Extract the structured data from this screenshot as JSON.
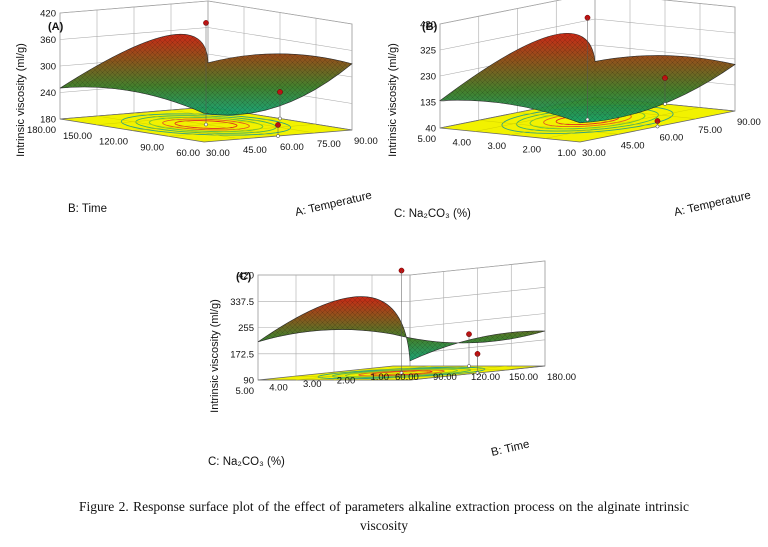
{
  "chart_data": [
    {
      "type": "surface",
      "panel": "(A)",
      "zlabel": "Intrinsic viscosity (ml/g)",
      "xlabel": "A: Temperature",
      "ylabel": "B: Time",
      "zticks": [
        "180",
        "240",
        "300",
        "360",
        "420"
      ],
      "xticks": [
        "30.00",
        "45.00",
        "60.00",
        "75.00",
        "90.00"
      ],
      "yticks": [
        "60.00",
        "90.00",
        "120.00",
        "150.00",
        "180.00"
      ],
      "x_range": [
        30,
        90
      ],
      "y_range": [
        60,
        180
      ],
      "z_range": [
        180,
        420
      ],
      "peak": {
        "x": 60,
        "y": 120,
        "z": 410
      },
      "corners": [
        {
          "x": 30,
          "y": 60,
          "z": 245
        },
        {
          "x": 90,
          "y": 60,
          "z": 330
        },
        {
          "x": 90,
          "y": 180,
          "z": 280
        },
        {
          "x": 30,
          "y": 180,
          "z": 250
        }
      ],
      "design_points": [
        {
          "x": 60,
          "y": 120,
          "z": 410
        },
        {
          "x": 90,
          "y": 120,
          "z": 240
        },
        {
          "x": 60,
          "y": 60,
          "z": 205
        }
      ]
    },
    {
      "type": "surface",
      "panel": "(B)",
      "zlabel": "Intrinsic viscosity (ml/g)",
      "xlabel": "A: Temperature",
      "ylabel": "C:  Na₂CO₃ (%)",
      "zticks": [
        "40",
        "135",
        "230",
        "325",
        "420"
      ],
      "xticks": [
        "30.00",
        "45.00",
        "60.00",
        "75.00",
        "90.00"
      ],
      "yticks": [
        "1.00",
        "2.00",
        "3.00",
        "4.00",
        "5.00"
      ],
      "x_range": [
        30,
        90
      ],
      "y_range": [
        1,
        5
      ],
      "z_range": [
        40,
        420
      ],
      "peak": {
        "x": 60,
        "y": 3,
        "z": 412
      },
      "corners": [
        {
          "x": 30,
          "y": 1,
          "z": 110
        },
        {
          "x": 90,
          "y": 1,
          "z": 210
        },
        {
          "x": 90,
          "y": 5,
          "z": 170
        },
        {
          "x": 30,
          "y": 5,
          "z": 140
        }
      ],
      "design_points": [
        {
          "x": 60,
          "y": 3,
          "z": 412
        },
        {
          "x": 90,
          "y": 3,
          "z": 135
        },
        {
          "x": 60,
          "y": 1,
          "z": 60
        }
      ]
    },
    {
      "type": "surface",
      "panel": "(C)",
      "zlabel": "Intrinsic viscosity (ml/g)",
      "xlabel": "B: Time",
      "ylabel": "C:  Na₂CO₃ (%)",
      "zticks": [
        "90",
        "172.5",
        "255",
        "337.5",
        "420"
      ],
      "xticks": [
        "60.00",
        "90.00",
        "120.00",
        "150.00",
        "180.00"
      ],
      "yticks": [
        "1.00",
        "2.00",
        "3.00",
        "4.00",
        "5.00"
      ],
      "x_range": [
        60,
        180
      ],
      "y_range": [
        1,
        5
      ],
      "z_range": [
        90,
        420
      ],
      "peak": {
        "x": 120,
        "y": 3,
        "z": 412
      },
      "corners": [
        {
          "x": 60,
          "y": 1,
          "z": 190
        },
        {
          "x": 180,
          "y": 1,
          "z": 200
        },
        {
          "x": 180,
          "y": 5,
          "z": 150
        },
        {
          "x": 60,
          "y": 5,
          "z": 210
        }
      ],
      "design_points": [
        {
          "x": 120,
          "y": 3,
          "z": 412
        },
        {
          "x": 180,
          "y": 3,
          "z": 150
        },
        {
          "x": 120,
          "y": 1,
          "z": 190
        }
      ]
    }
  ],
  "caption": {
    "line1": "Figure 2. Response surface plot of the effect of parameters  alkaline  extraction  process  on  the  alginate  intrinsic",
    "line2": "viscosity"
  }
}
